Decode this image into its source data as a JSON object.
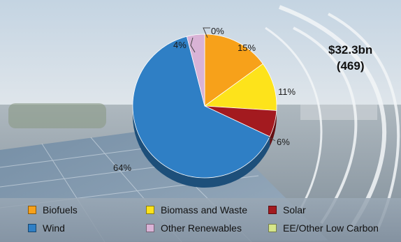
{
  "chart_data": {
    "type": "pie",
    "title": "",
    "total_label_line1": "$32.3bn",
    "total_label_line2": "(469)",
    "legend_position": "bottom",
    "slices": [
      {
        "name": "Biofuels",
        "value": 15,
        "label": "15%",
        "color": "#f7a11a"
      },
      {
        "name": "Biomass and Waste",
        "value": 11,
        "label": "11%",
        "color": "#fde31b"
      },
      {
        "name": "Solar",
        "value": 6,
        "label": "6%",
        "color": "#a31a1f"
      },
      {
        "name": "Wind",
        "value": 64,
        "label": "64%",
        "color": "#2f7fc5"
      },
      {
        "name": "Other Renewables",
        "value": 4,
        "label": "4%",
        "color": "#d9b3d6"
      },
      {
        "name": "EE/Other Low Carbon",
        "value": 0,
        "label": "0%",
        "color": "#d6e68a"
      }
    ]
  }
}
